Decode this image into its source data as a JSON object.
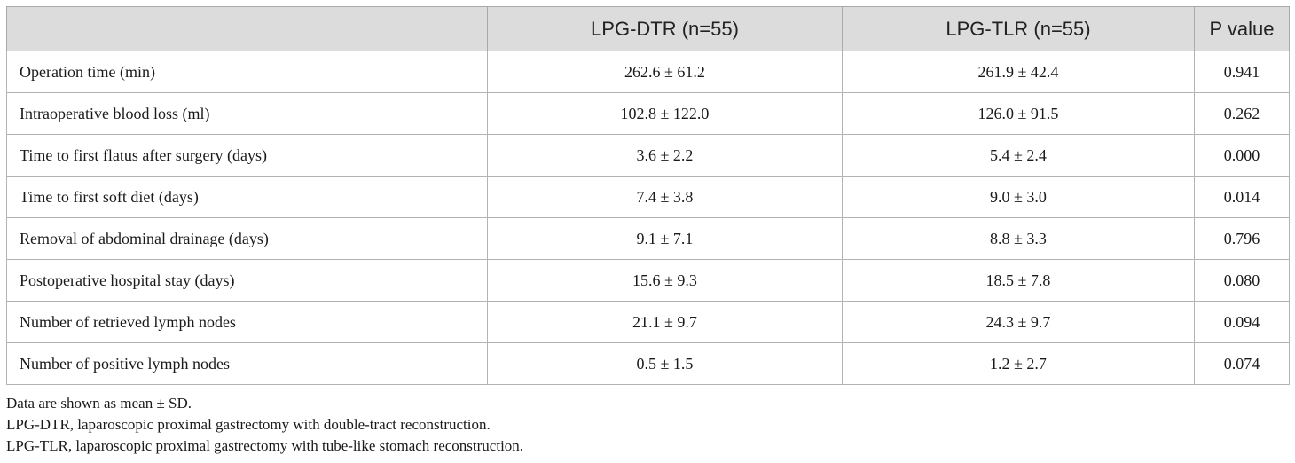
{
  "table": {
    "headers": [
      "",
      "LPG-DTR (n=55)",
      "LPG-TLR (n=55)",
      "P value"
    ],
    "rows": [
      [
        "Operation time (min)",
        "262.6 ± 61.2",
        "261.9 ± 42.4",
        "0.941"
      ],
      [
        "Intraoperative blood loss (ml)",
        "102.8 ± 122.0",
        "126.0 ± 91.5",
        "0.262"
      ],
      [
        "Time to first flatus after surgery (days)",
        "3.6 ± 2.2",
        "5.4 ± 2.4",
        "0.000"
      ],
      [
        "Time to first soft diet (days)",
        "7.4 ± 3.8",
        "9.0 ± 3.0",
        "0.014"
      ],
      [
        "Removal of abdominal drainage (days)",
        "9.1 ± 7.1",
        "8.8 ± 3.3",
        "0.796"
      ],
      [
        "Postoperative hospital stay (days)",
        "15.6 ± 9.3",
        "18.5 ± 7.8",
        "0.080"
      ],
      [
        "Number of retrieved lymph nodes",
        "21.1 ± 9.7",
        "24.3 ± 9.7",
        "0.094"
      ],
      [
        "Number of positive lymph nodes",
        "0.5 ± 1.5",
        "1.2 ± 2.7",
        "0.074"
      ]
    ]
  },
  "notes": [
    "Data are shown as mean ± SD.",
    "LPG-DTR, laparoscopic proximal gastrectomy with double-tract reconstruction.",
    "LPG-TLR, laparoscopic proximal gastrectomy with tube-like stomach reconstruction."
  ]
}
